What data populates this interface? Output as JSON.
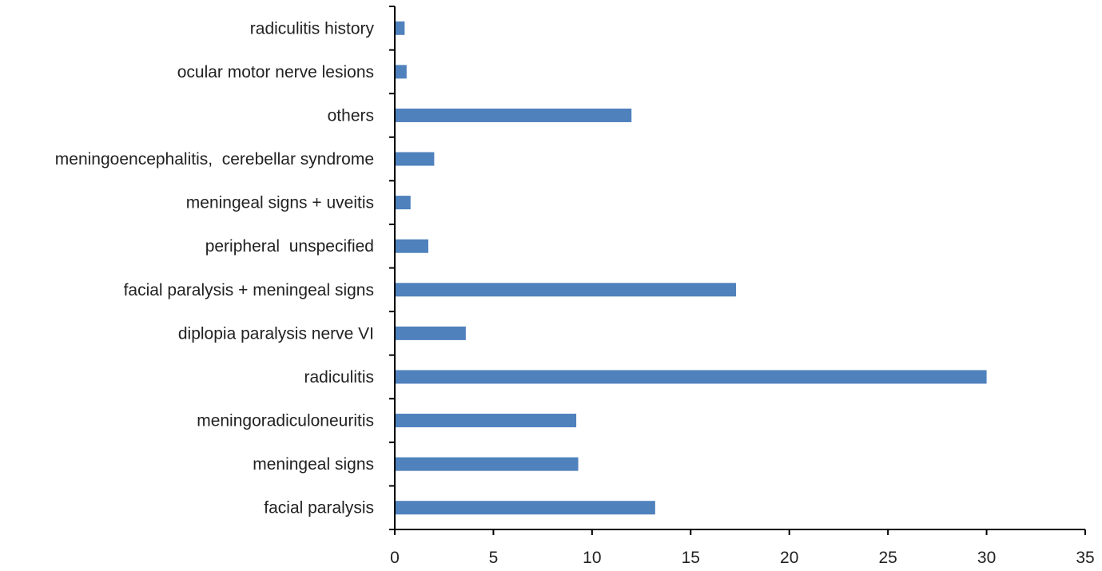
{
  "chart_data": {
    "type": "bar",
    "orientation": "horizontal",
    "title": "",
    "xlabel": "",
    "ylabel": "",
    "categories": [
      "facial paralysis",
      "meningeal signs",
      "meningoradiculoneuritis",
      "radiculitis",
      "diplopia paralysis nerve VI",
      "facial paralysis + meningeal signs",
      "peripheral  unspecified",
      "meningeal signs + uveitis",
      "meningoencephalitis,  cerebellar syndrome",
      "others",
      "ocular motor nerve lesions",
      "radiculitis history"
    ],
    "values": [
      13.2,
      9.3,
      9.2,
      30.0,
      3.6,
      17.3,
      1.7,
      0.8,
      2.0,
      12.0,
      0.6,
      0.5
    ],
    "xlim": [
      0,
      35
    ],
    "xticks": [
      0,
      5,
      10,
      15,
      20,
      25,
      30,
      35
    ],
    "bar_color": "#4f81bd",
    "grid": false,
    "legend": "none"
  }
}
